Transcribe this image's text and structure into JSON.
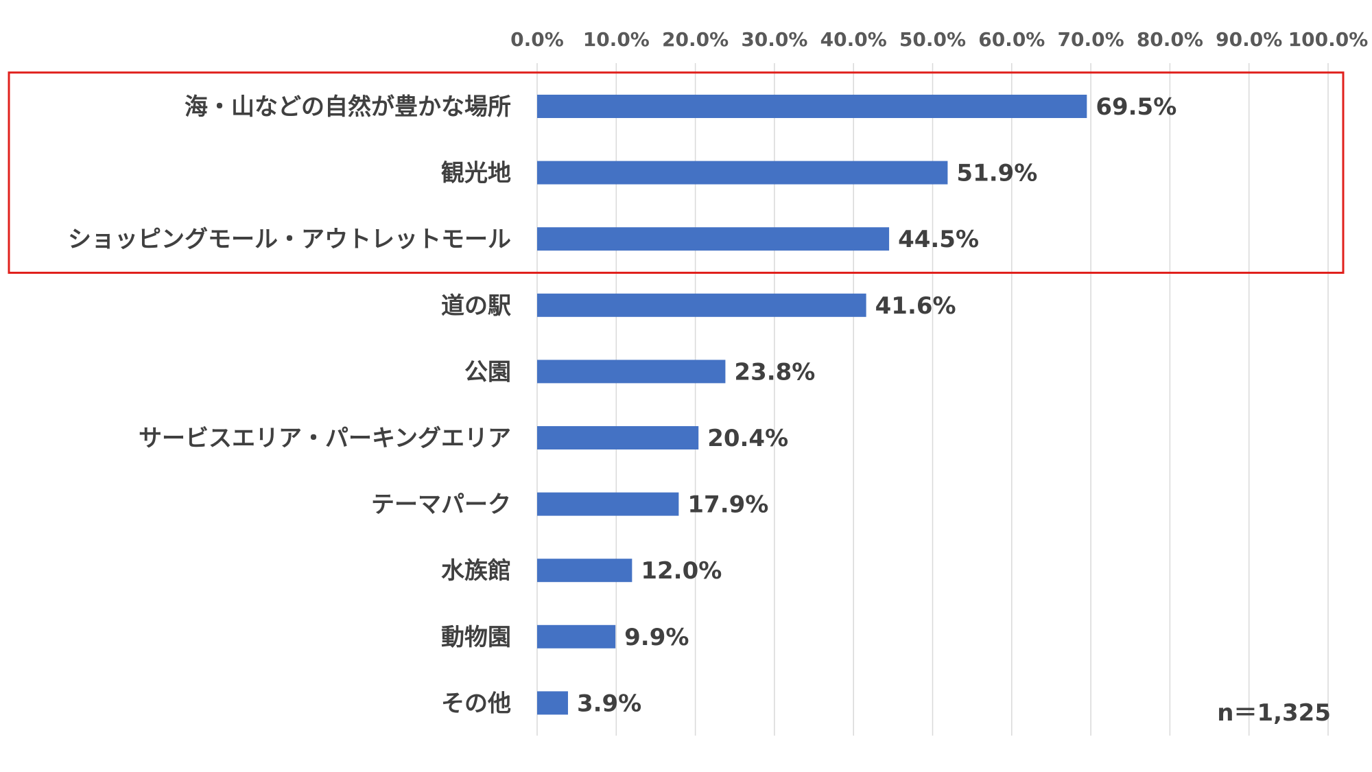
{
  "chart_data": {
    "type": "bar",
    "orientation": "horizontal",
    "categories": [
      "海・山などの自然が豊かな場所",
      "観光地",
      "ショッピングモール・アウトレットモール",
      "道の駅",
      "公園",
      "サービスエリア・パーキングエリア",
      "テーマパーク",
      "水族館",
      "動物園",
      "その他"
    ],
    "values": [
      69.5,
      51.9,
      44.5,
      41.6,
      23.8,
      20.4,
      17.9,
      12.0,
      9.9,
      3.9
    ],
    "data_labels": [
      "69.5%",
      "51.9%",
      "44.5%",
      "41.6%",
      "23.8%",
      "20.4%",
      "17.9%",
      "12.0%",
      "9.9%",
      "3.9%"
    ],
    "xlim": [
      0,
      100
    ],
    "tick_values": [
      0,
      10,
      20,
      30,
      40,
      50,
      60,
      70,
      80,
      90,
      100
    ],
    "tick_labels": [
      "0.0%",
      "10.0%",
      "20.0%",
      "30.0%",
      "40.0%",
      "50.0%",
      "60.0%",
      "70.0%",
      "80.0%",
      "90.0%",
      "100.0%"
    ],
    "axis_position": "top",
    "grid": true,
    "bar_color": "#4472c4",
    "highlight": {
      "categories_highlighted": 3,
      "color": "#e0201c"
    },
    "note": "n＝1,325"
  }
}
